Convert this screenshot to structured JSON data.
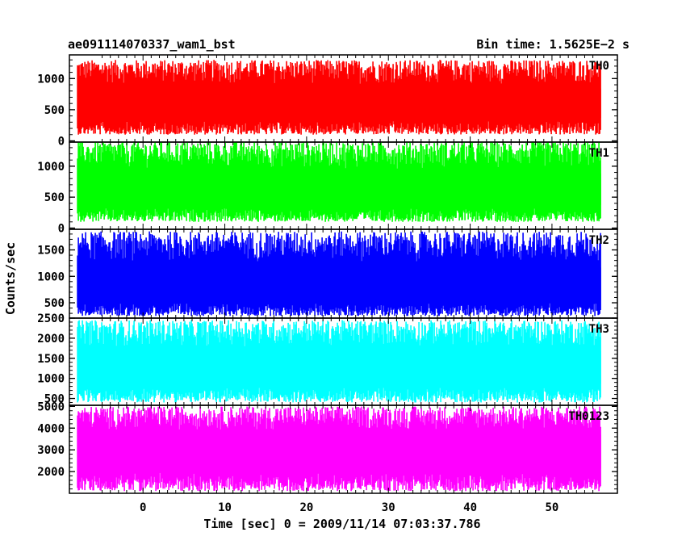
{
  "header": {
    "title": "ae091114070337_wam1_bst",
    "bin_time": "Bin time: 1.5625E−2 s"
  },
  "chart_data": {
    "type": "line",
    "xlabel": "Time [sec] 0 = 2009/11/14 07:03:37.786",
    "ylabel": "Counts/sec",
    "xlim": [
      -9,
      58
    ],
    "xticks": [
      "0",
      "10",
      "20",
      "30",
      "40",
      "50"
    ],
    "x_data_range": [
      -8,
      56
    ],
    "panels": [
      {
        "name": "TH0",
        "color": "#ff0000",
        "ylim": [
          -20,
          1380
        ],
        "yticks": [
          "0",
          "500",
          "1000"
        ],
        "mean": 590,
        "low": 100,
        "high": 1300
      },
      {
        "name": "TH1",
        "color": "#00ff00",
        "ylim": [
          -20,
          1390
        ],
        "yticks": [
          "0",
          "500",
          "1000"
        ],
        "mean": 600,
        "low": 100,
        "high": 1400
      },
      {
        "name": "TH2",
        "color": "#0000ff",
        "ylim": [
          210,
          1890
        ],
        "yticks": [
          "500",
          "1000",
          "1500"
        ],
        "mean": 800,
        "low": 250,
        "high": 1850
      },
      {
        "name": "TH3",
        "color": "#00ffff",
        "ylim": [
          330,
          2500
        ],
        "yticks": [
          "500",
          "1000",
          "1500",
          "2000",
          "2500"
        ],
        "mean": 1250,
        "low": 400,
        "high": 2450
      },
      {
        "name": "TH0123",
        "color": "#ff00ff",
        "ylim": [
          1000,
          5050
        ],
        "yticks": [
          "2000",
          "3000",
          "4000",
          "5000"
        ],
        "mean": 3000,
        "low": 1100,
        "high": 5000
      }
    ]
  }
}
